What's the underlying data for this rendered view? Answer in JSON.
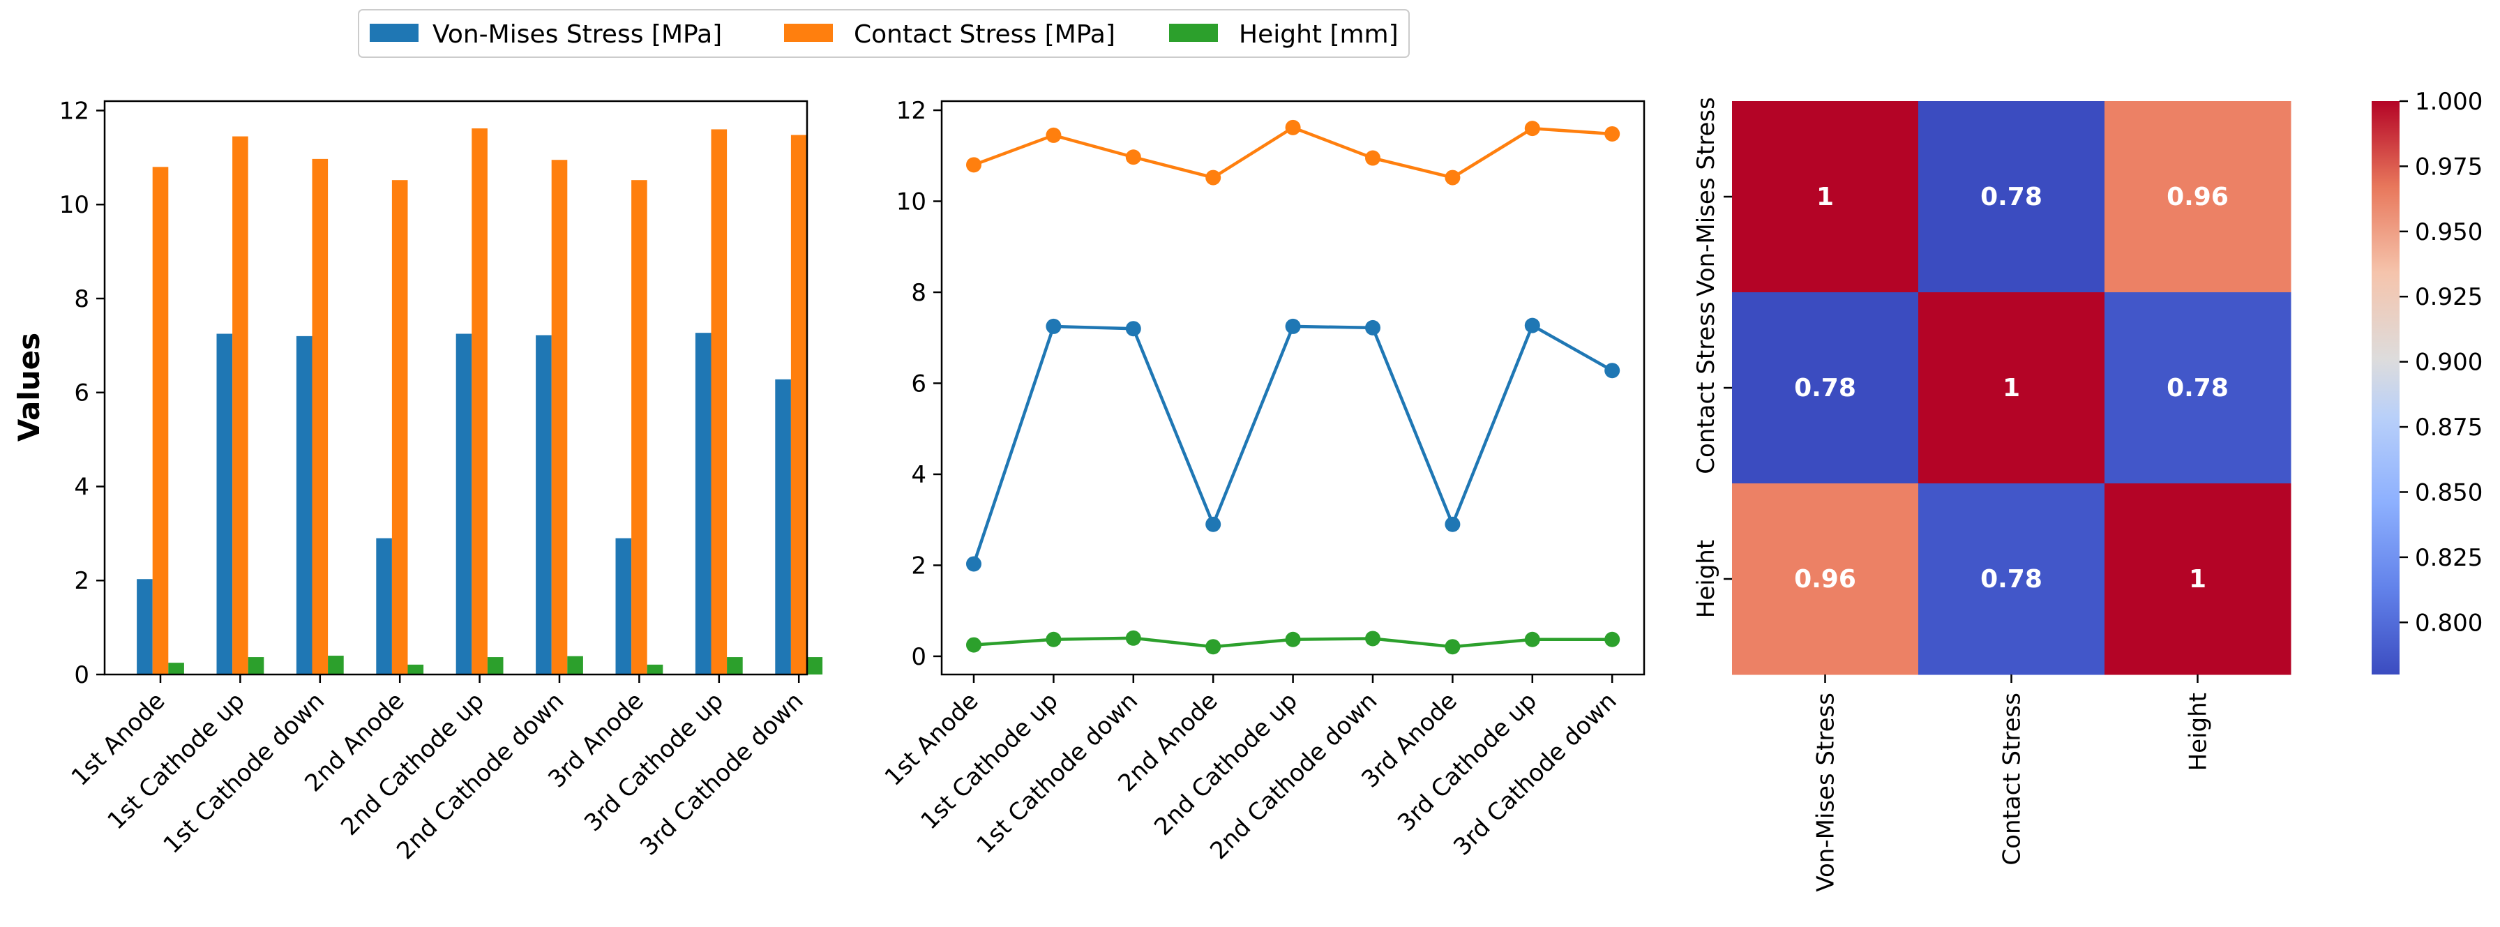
{
  "legend": {
    "entries": [
      {
        "label": "Von-Mises Stress [MPa]",
        "color": "#1f77b4"
      },
      {
        "label": "Contact Stress [MPa]",
        "color": "#ff7f0e"
      },
      {
        "label": "Height [mm]",
        "color": "#2ca02c"
      }
    ]
  },
  "chart_data": [
    {
      "type": "bar",
      "ylabel": "Values",
      "ylim": [
        0,
        12.2
      ],
      "yticks": [
        "0",
        "2",
        "4",
        "6",
        "8",
        "10",
        "12"
      ],
      "categories": [
        "1st Anode",
        "1st Cathode up",
        "1st Cathode down",
        "2nd Anode",
        "2nd Cathode up",
        "2nd Cathode down",
        "3rd Anode",
        "3rd Cathode up",
        "3rd Cathode down"
      ],
      "series": [
        {
          "name": "Von-Mises Stress [MPa]",
          "color": "#1f77b4",
          "values": [
            2.03,
            7.25,
            7.2,
            2.9,
            7.25,
            7.22,
            2.9,
            7.27,
            6.28
          ]
        },
        {
          "name": "Contact Stress [MPa]",
          "color": "#ff7f0e",
          "values": [
            10.8,
            11.45,
            10.97,
            10.52,
            11.62,
            10.95,
            10.52,
            11.6,
            11.48
          ]
        },
        {
          "name": "Height [mm]",
          "color": "#2ca02c",
          "values": [
            0.25,
            0.37,
            0.4,
            0.21,
            0.37,
            0.39,
            0.21,
            0.37,
            0.37
          ]
        }
      ]
    },
    {
      "type": "line",
      "ylim": [
        -0.4,
        12.2
      ],
      "yticks": [
        "0",
        "2",
        "4",
        "6",
        "8",
        "10",
        "12"
      ],
      "categories": [
        "1st Anode",
        "1st Cathode up",
        "1st Cathode down",
        "2nd Anode",
        "2nd Cathode up",
        "2nd Cathode down",
        "3rd Anode",
        "3rd Cathode up",
        "3rd Cathode down"
      ],
      "series": [
        {
          "name": "Von-Mises Stress [MPa]",
          "color": "#1f77b4",
          "values": [
            2.03,
            7.25,
            7.2,
            2.9,
            7.25,
            7.22,
            2.9,
            7.27,
            6.28
          ]
        },
        {
          "name": "Contact Stress [MPa]",
          "color": "#ff7f0e",
          "values": [
            10.8,
            11.45,
            10.97,
            10.52,
            11.62,
            10.95,
            10.52,
            11.6,
            11.48
          ]
        },
        {
          "name": "Height [mm]",
          "color": "#2ca02c",
          "values": [
            0.25,
            0.37,
            0.4,
            0.21,
            0.37,
            0.39,
            0.21,
            0.37,
            0.37
          ]
        }
      ]
    },
    {
      "type": "heatmap",
      "colormap": "coolwarm",
      "rows": [
        "Von-Mises Stress",
        "Contact Stress",
        "Height"
      ],
      "cols": [
        "Von-Mises Stress",
        "Contact Stress",
        "Height"
      ],
      "values": [
        [
          1,
          0.78,
          0.96
        ],
        [
          0.78,
          1,
          0.78
        ],
        [
          0.96,
          0.78,
          1
        ]
      ],
      "annotations": [
        [
          "1",
          "0.78",
          "0.96"
        ],
        [
          "0.78",
          "1",
          "0.78"
        ],
        [
          "0.96",
          "0.78",
          "1"
        ]
      ],
      "cell_colors": [
        [
          "#b40426",
          "#3b4cc0",
          "#ec8165"
        ],
        [
          "#3b4cc0",
          "#b40426",
          "#4257c9"
        ],
        [
          "#ec8165",
          "#4257c9",
          "#b40426"
        ]
      ],
      "colorbar": {
        "range": [
          0.78,
          1.0
        ],
        "ticks": [
          "0.800",
          "0.825",
          "0.850",
          "0.875",
          "0.900",
          "0.925",
          "0.950",
          "0.975",
          "1.000"
        ],
        "tick_values": [
          0.8,
          0.825,
          0.85,
          0.875,
          0.9,
          0.925,
          0.95,
          0.975,
          1.0
        ]
      }
    }
  ]
}
